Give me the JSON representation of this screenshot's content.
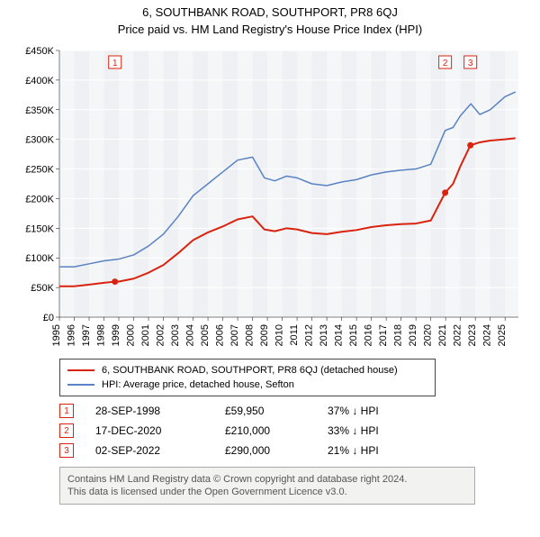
{
  "title": "6, SOUTHBANK ROAD, SOUTHPORT, PR8 6QJ",
  "subtitle": "Price paid vs. HM Land Registry's House Price Index (HPI)",
  "chart": {
    "type": "line",
    "background_color": "#eef0f3",
    "band_color": "#f4f6f8",
    "grid_color": "#ffffff",
    "xlim": [
      1995,
      2025.9
    ],
    "ylim": [
      0,
      450000
    ],
    "yticks": [
      0,
      50000,
      100000,
      150000,
      200000,
      250000,
      300000,
      350000,
      400000,
      450000
    ],
    "yticklabels": [
      "£0",
      "£50K",
      "£100K",
      "£150K",
      "£200K",
      "£250K",
      "£300K",
      "£350K",
      "£400K",
      "£450K"
    ],
    "xticks": [
      1995,
      1996,
      1997,
      1998,
      1999,
      2000,
      2001,
      2002,
      2003,
      2004,
      2005,
      2006,
      2007,
      2008,
      2009,
      2010,
      2011,
      2012,
      2013,
      2014,
      2015,
      2016,
      2017,
      2018,
      2019,
      2020,
      2021,
      2022,
      2023,
      2024,
      2025
    ],
    "series": {
      "hpi": {
        "label": "HPI: Average price, detached house, Sefton",
        "color": "#5a82c4",
        "width": 1.5,
        "x": [
          1995,
          1996,
          1997,
          1998,
          1999,
          2000,
          2001,
          2002,
          2003,
          2004,
          2005,
          2006,
          2007,
          2008,
          2008.8,
          2009.5,
          2010.3,
          2011,
          2012,
          2013,
          2014,
          2015,
          2016,
          2017,
          2018,
          2019,
          2020,
          2020.97,
          2021.5,
          2022,
          2022.7,
          2023.3,
          2024,
          2025,
          2025.7
        ],
        "y": [
          85000,
          85000,
          90000,
          95000,
          98000,
          105000,
          120000,
          140000,
          170000,
          205000,
          225000,
          245000,
          265000,
          270000,
          235000,
          230000,
          238000,
          235000,
          225000,
          222000,
          228000,
          232000,
          240000,
          245000,
          248000,
          250000,
          258000,
          315000,
          320000,
          340000,
          360000,
          342000,
          350000,
          372000,
          380000
        ]
      },
      "price_paid": {
        "label": "6, SOUTHBANK ROAD, SOUTHPORT, PR8 6QJ (detached house)",
        "color": "#d9230f",
        "width": 2,
        "x": [
          1995,
          1996,
          1997,
          1998,
          1998.74,
          1999,
          2000,
          2001,
          2002,
          2003,
          2004,
          2005,
          2006,
          2007,
          2008,
          2008.8,
          2009.5,
          2010.3,
          2011,
          2012,
          2013,
          2014,
          2015,
          2016,
          2017,
          2018,
          2019,
          2020,
          2020.97,
          2021.5,
          2022,
          2022.67,
          2023.3,
          2024,
          2025,
          2025.7
        ],
        "y": [
          52000,
          52000,
          55000,
          58000,
          59950,
          60000,
          65000,
          75000,
          88000,
          108000,
          130000,
          143000,
          153000,
          165000,
          170000,
          148000,
          145000,
          150000,
          148000,
          142000,
          140000,
          144000,
          147000,
          152000,
          155000,
          157000,
          158000,
          163000,
          210000,
          225000,
          255000,
          290000,
          295000,
          298000,
          300000,
          302000
        ]
      }
    },
    "markers": [
      {
        "n": "1",
        "x": 1998.74,
        "y": 59950
      },
      {
        "n": "2",
        "x": 2020.97,
        "y": 210000
      },
      {
        "n": "3",
        "x": 2022.67,
        "y": 290000
      }
    ]
  },
  "legend": [
    {
      "color": "#d9230f",
      "label": "6, SOUTHBANK ROAD, SOUTHPORT, PR8 6QJ (detached house)"
    },
    {
      "color": "#5a82c4",
      "label": "HPI: Average price, detached house, Sefton"
    }
  ],
  "sales": [
    {
      "n": "1",
      "date": "28-SEP-1998",
      "price": "£59,950",
      "pct": "37% ↓ HPI"
    },
    {
      "n": "2",
      "date": "17-DEC-2020",
      "price": "£210,000",
      "pct": "33% ↓ HPI"
    },
    {
      "n": "3",
      "date": "02-SEP-2022",
      "price": "£290,000",
      "pct": "21% ↓ HPI"
    }
  ],
  "footer": {
    "l1": "Contains HM Land Registry data © Crown copyright and database right 2024.",
    "l2": "This data is licensed under the Open Government Licence v3.0."
  }
}
